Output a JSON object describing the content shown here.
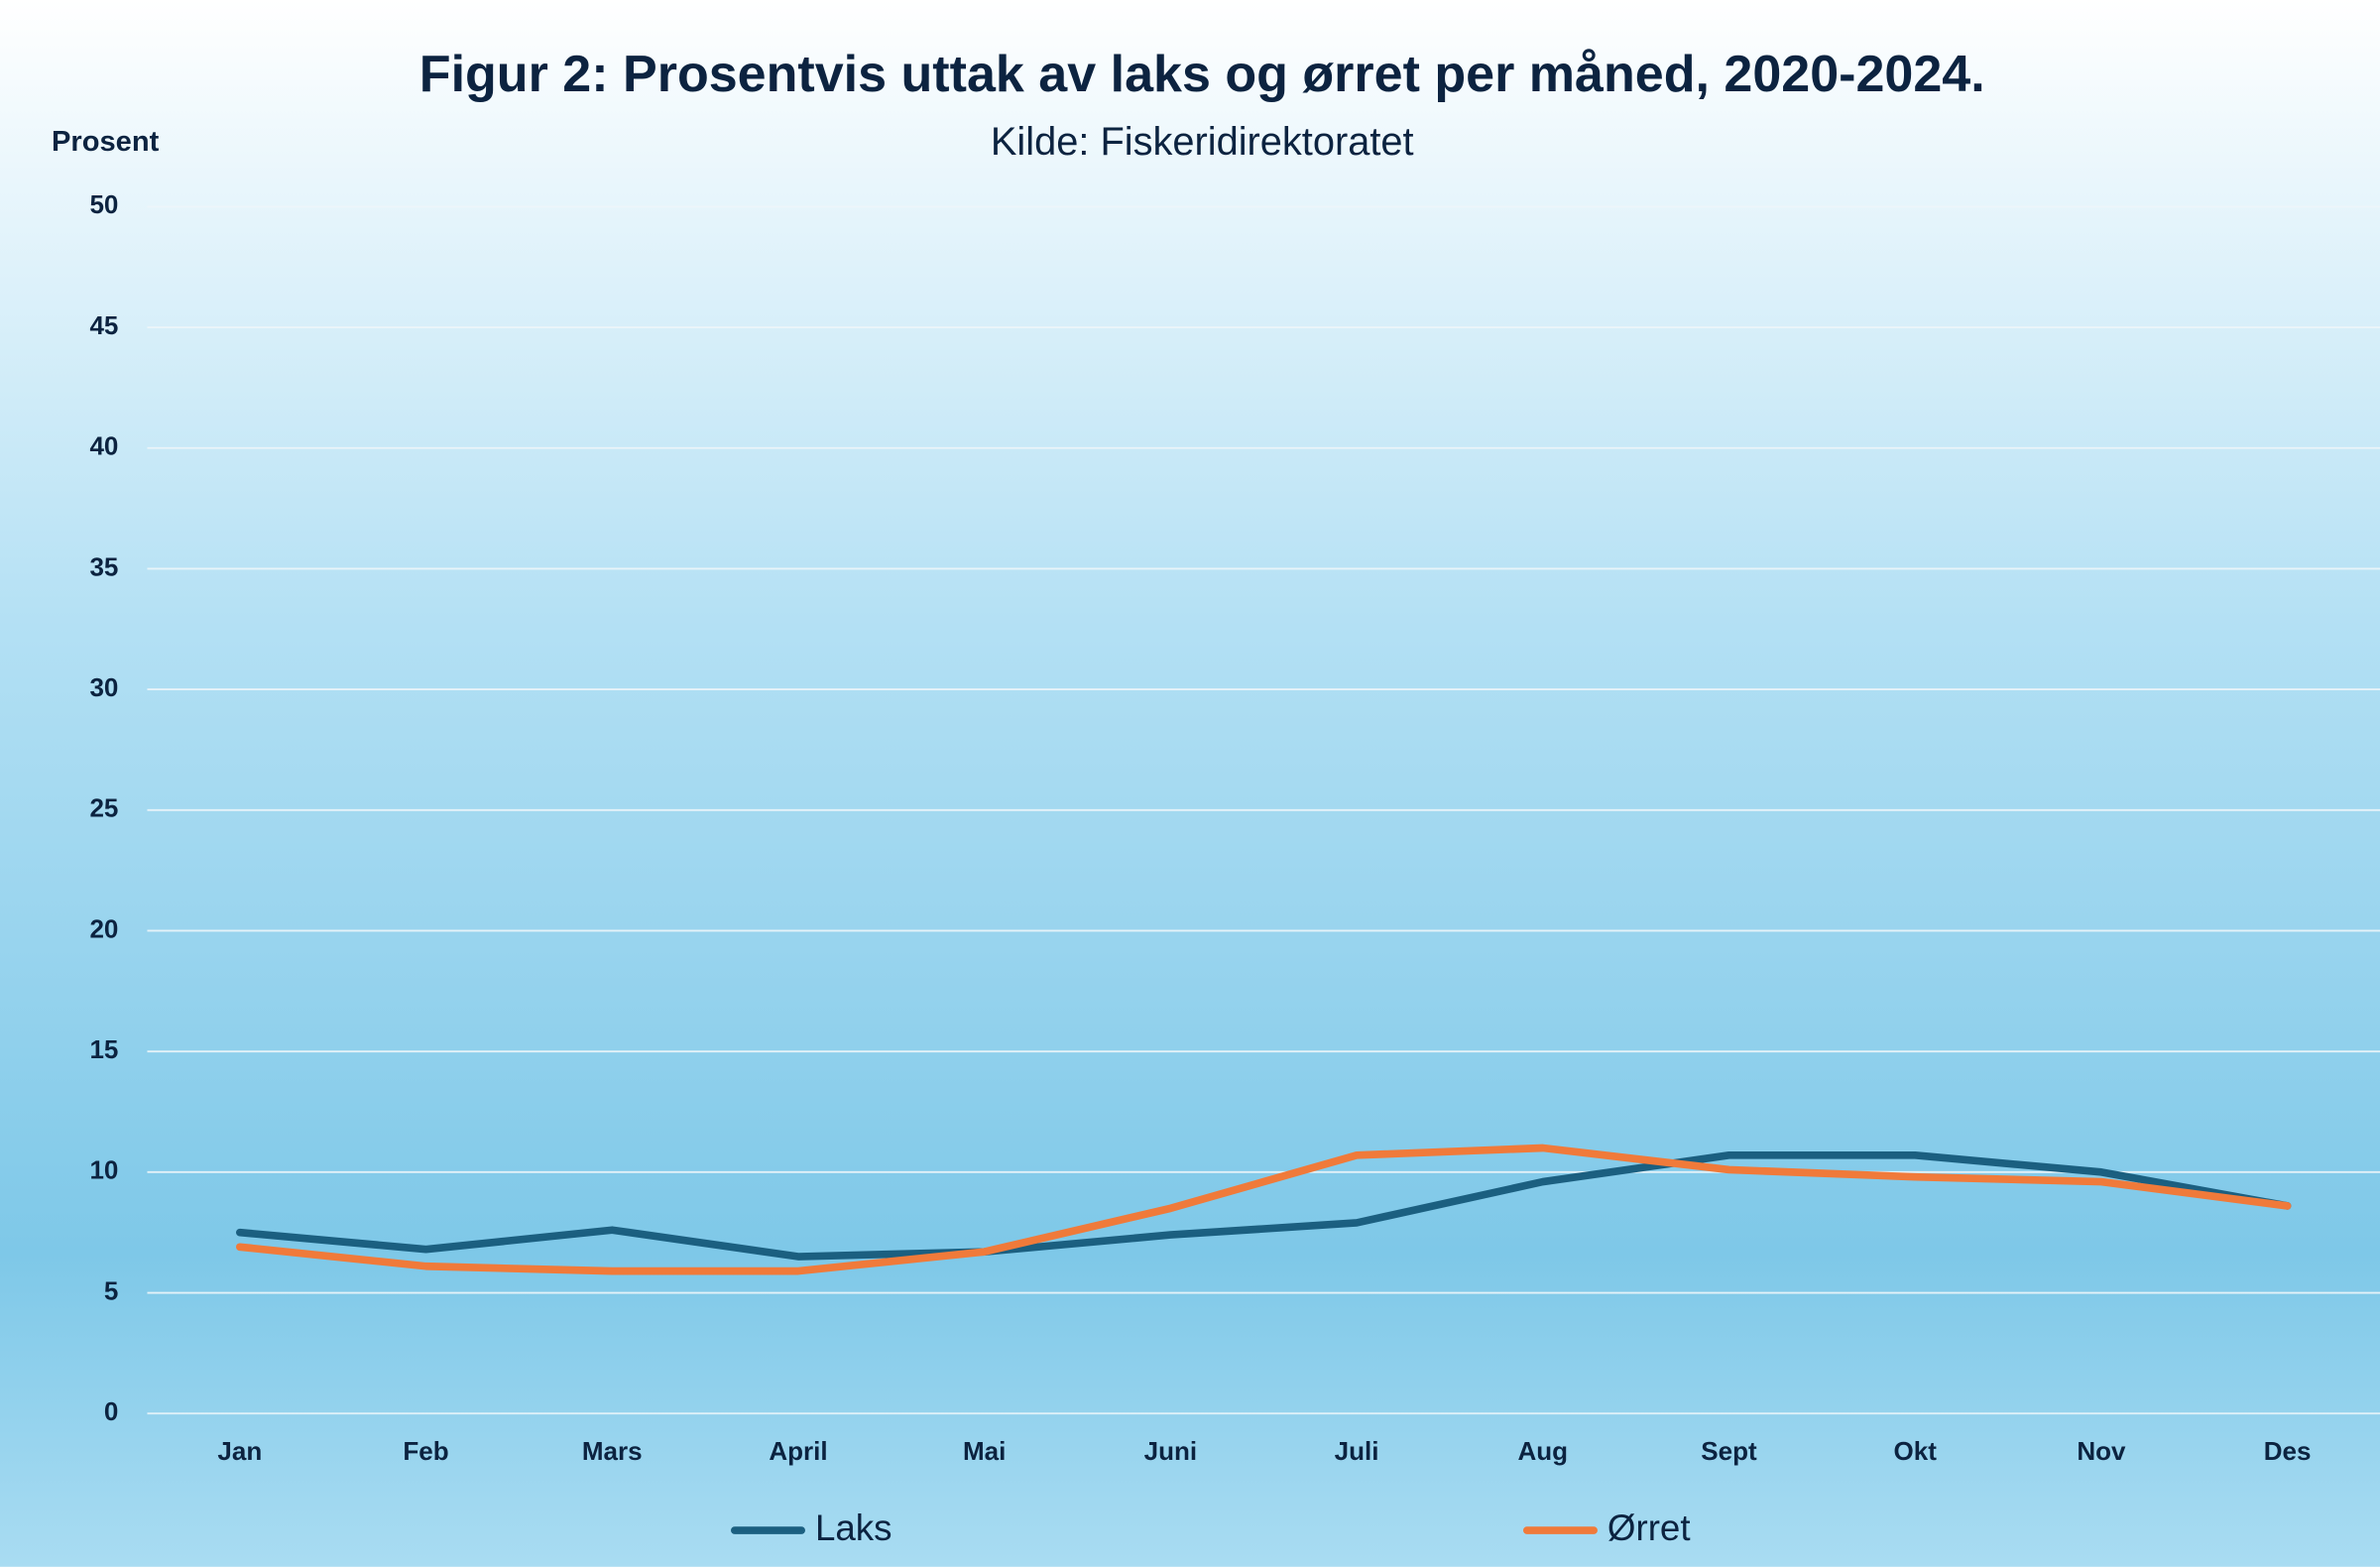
{
  "chart_data": {
    "type": "line",
    "title": "Figur 2: Prosentvis uttak av laks og ørret per måned, 2020-2024.",
    "subtitle": "Kilde: Fiskeridirektoratet",
    "y_label": "Prosent",
    "categories": [
      "Jan",
      "Feb",
      "Mars",
      "April",
      "Mai",
      "Juni",
      "Juli",
      "Aug",
      "Sept",
      "Okt",
      "Nov",
      "Des"
    ],
    "series": [
      {
        "name": "Laks",
        "color": "#1b5f80",
        "values": [
          7.5,
          6.8,
          7.6,
          6.5,
          6.7,
          7.4,
          7.9,
          9.6,
          10.7,
          10.7,
          10.0,
          8.6
        ]
      },
      {
        "name": "Ørret",
        "color": "#f07a3a",
        "values": [
          6.9,
          6.1,
          5.9,
          5.9,
          6.7,
          8.5,
          10.7,
          11.0,
          10.1,
          9.8,
          9.6,
          8.6
        ]
      }
    ],
    "ylim": [
      0,
      50
    ],
    "yticks": [
      0,
      5,
      10,
      15,
      20,
      25,
      30,
      35,
      40,
      45,
      50
    ],
    "grid": true,
    "legend": "bottom"
  }
}
